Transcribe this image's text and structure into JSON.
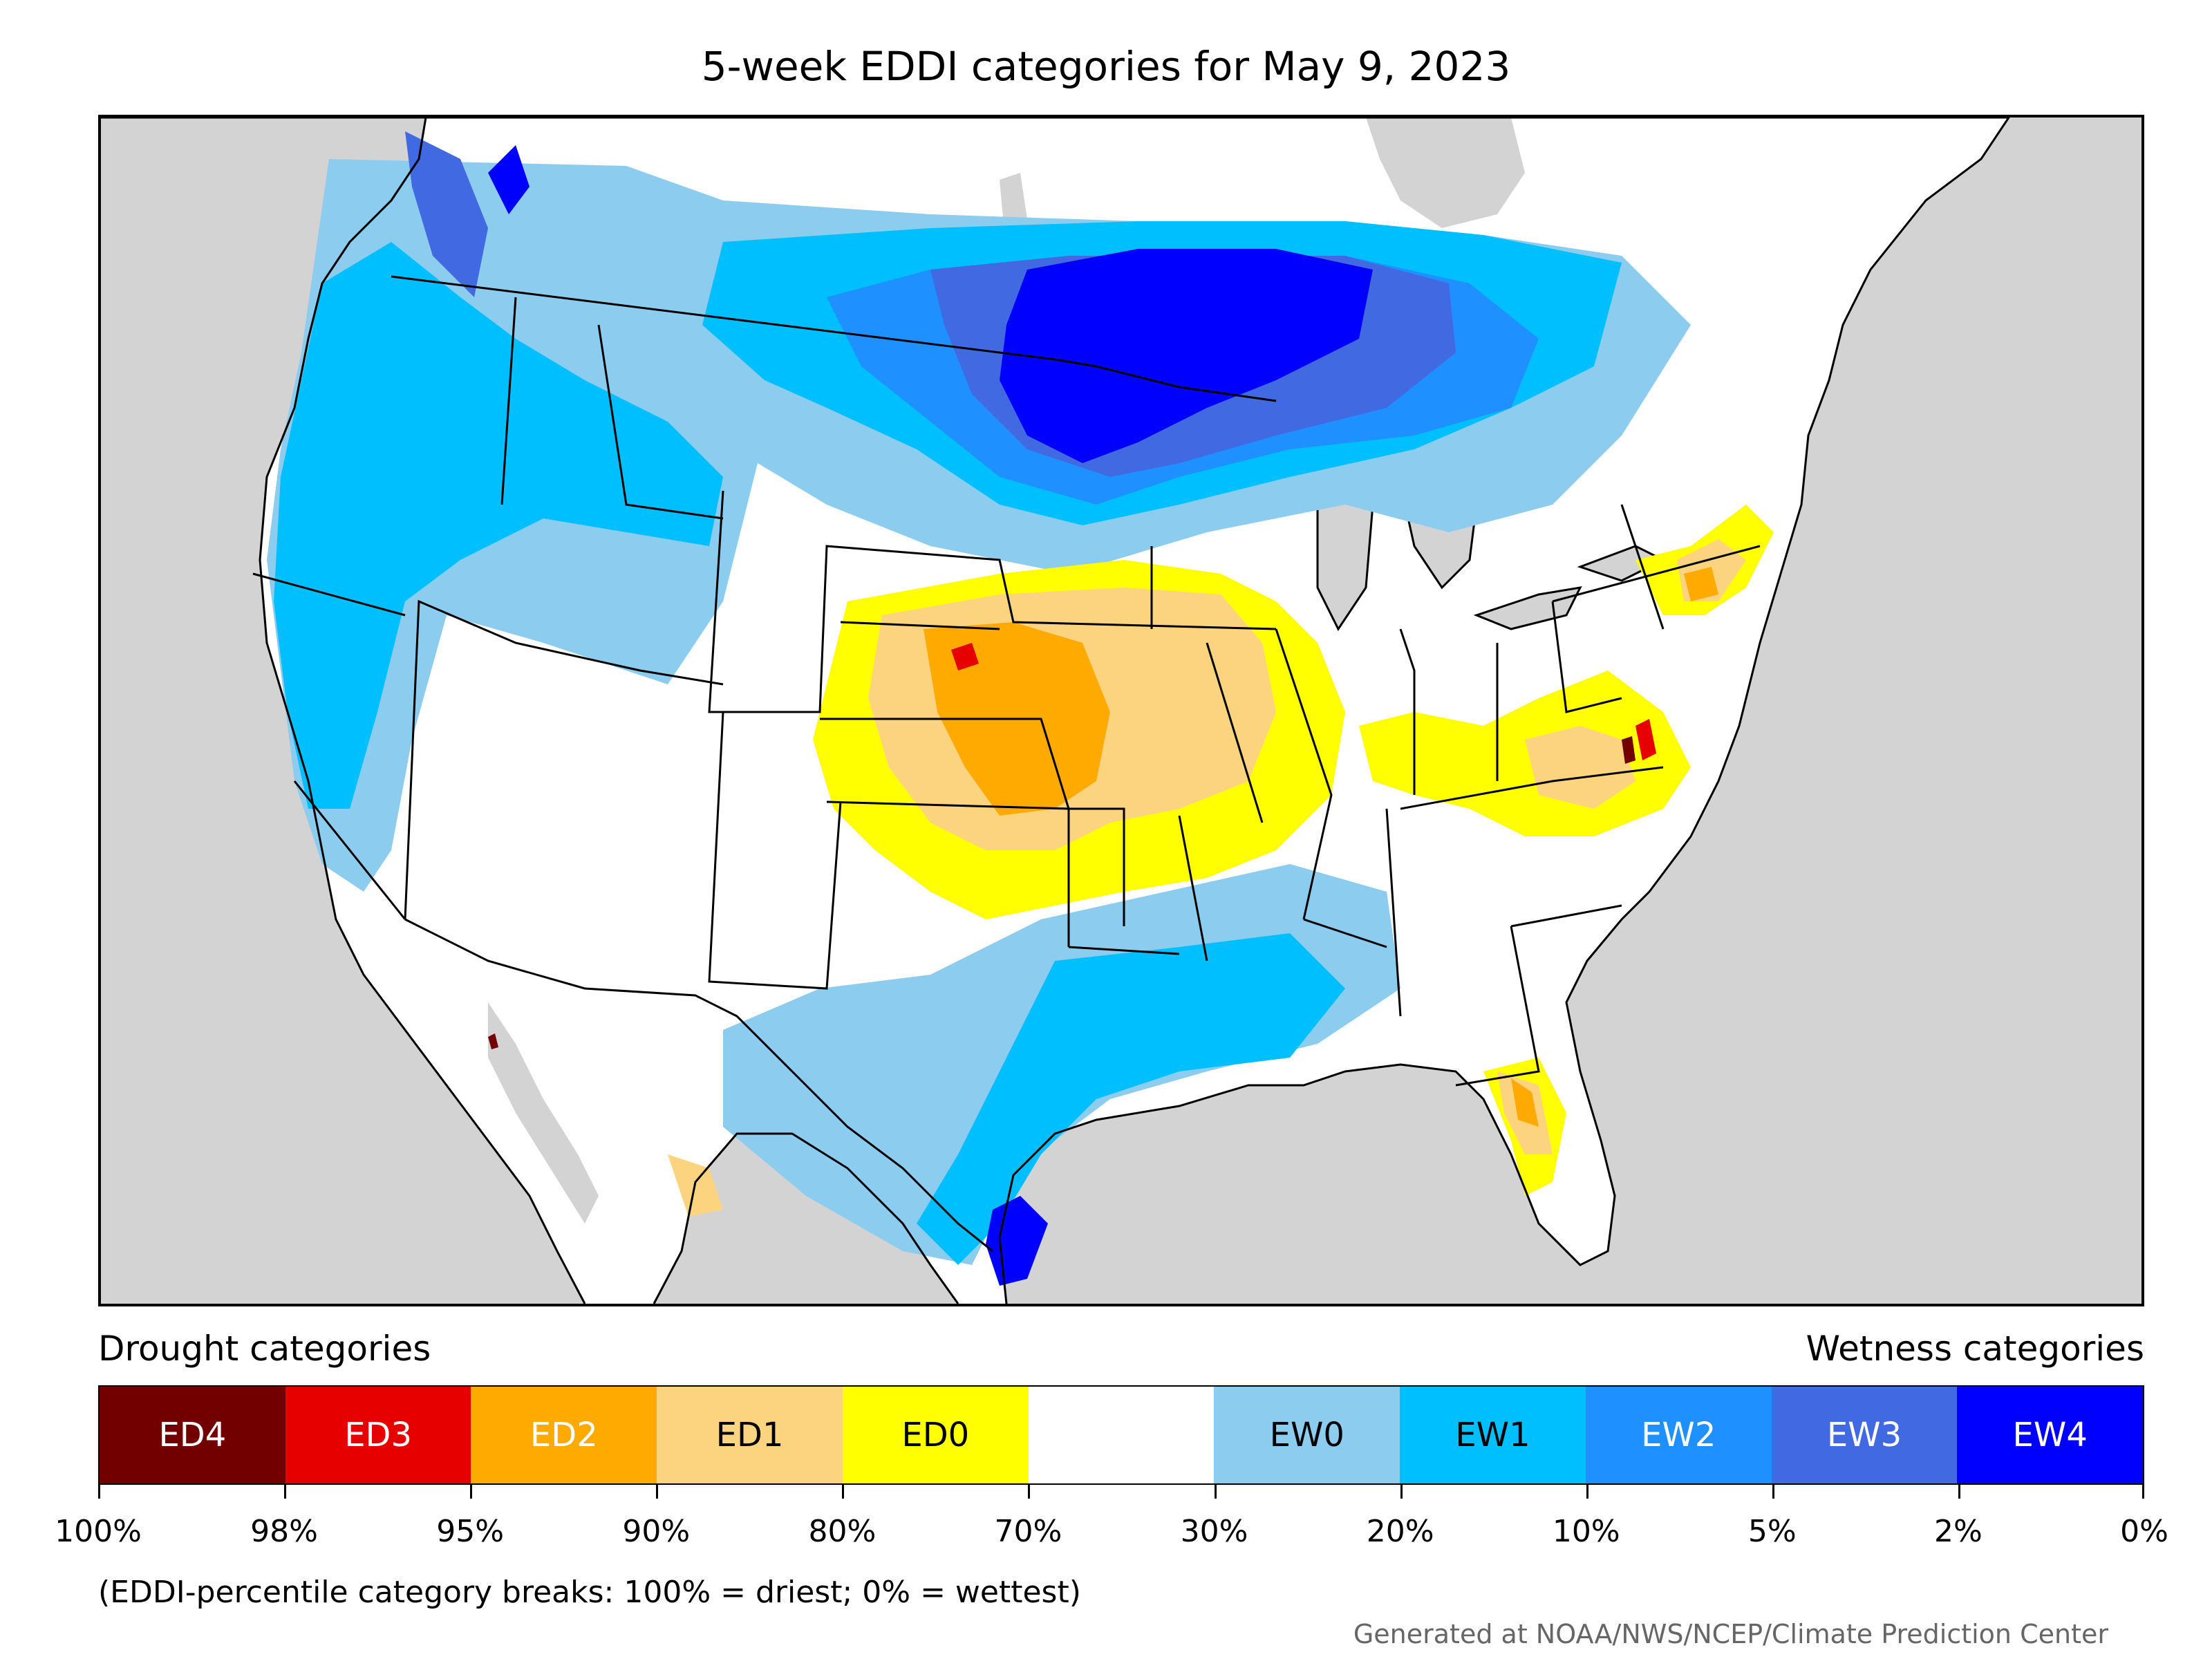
{
  "title": "5-week EDDI categories for May 9, 2023",
  "legend": {
    "drought_heading": "Drought categories",
    "wetness_heading": "Wetness categories",
    "categories": [
      {
        "label": "ED4",
        "color": "#730000",
        "text_color": "#ffffff"
      },
      {
        "label": "ED3",
        "color": "#e60000",
        "text_color": "#ffffff"
      },
      {
        "label": "ED2",
        "color": "#ffaa00",
        "text_color": "#ffffff"
      },
      {
        "label": "ED1",
        "color": "#fcd37f",
        "text_color": "#000000"
      },
      {
        "label": "ED0",
        "color": "#ffff00",
        "text_color": "#000000"
      },
      {
        "label": "",
        "color": "#ffffff",
        "text_color": "#000000"
      },
      {
        "label": "EW0",
        "color": "#8ccdef",
        "text_color": "#000000"
      },
      {
        "label": "EW1",
        "color": "#00bfff",
        "text_color": "#000000"
      },
      {
        "label": "EW2",
        "color": "#1e90ff",
        "text_color": "#ffffff"
      },
      {
        "label": "EW3",
        "color": "#4169e1",
        "text_color": "#ffffff"
      },
      {
        "label": "EW4",
        "color": "#0000ff",
        "text_color": "#ffffff"
      }
    ],
    "breaks": [
      "100%",
      "98%",
      "95%",
      "90%",
      "80%",
      "70%",
      "30%",
      "20%",
      "10%",
      "5%",
      "2%",
      "0%"
    ]
  },
  "note": "(EDDI-percentile category breaks: 100% = driest; 0% = wettest)",
  "credit": "Generated at NOAA/NWS/NCEP/Climate Prediction Center",
  "map_colors": {
    "ocean": "#d3d3d3",
    "land": "#ffffff",
    "boundary": "#000000"
  }
}
